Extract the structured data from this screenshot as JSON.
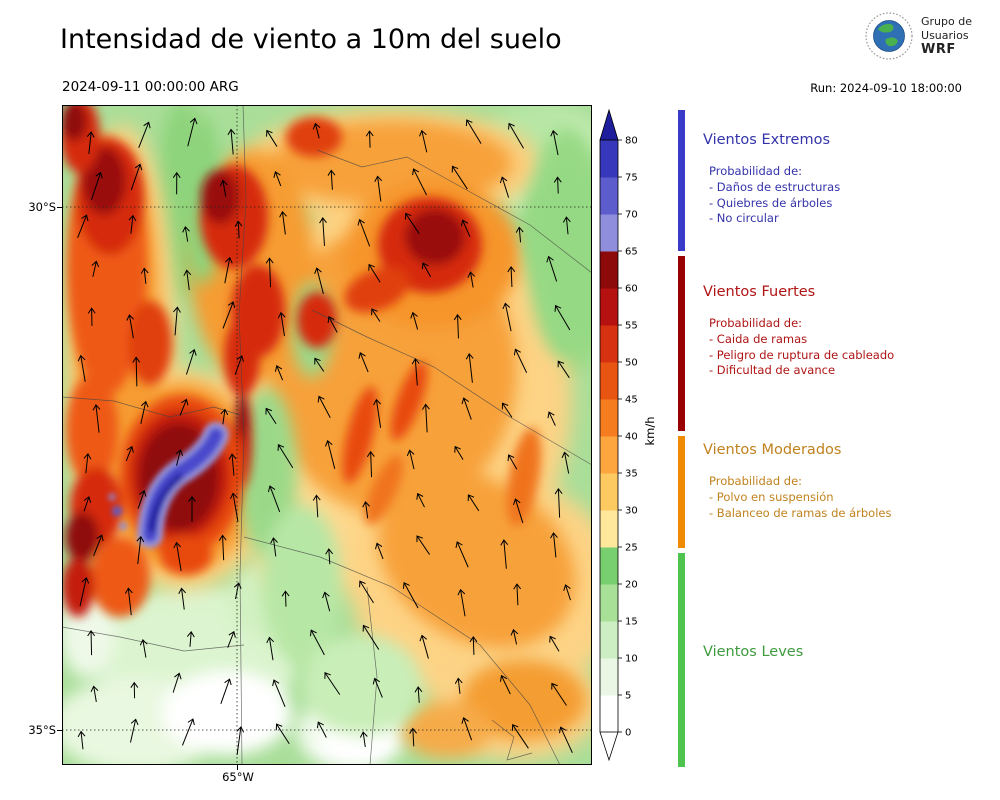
{
  "header": {
    "title": "Intensidad de viento a 10m del suelo",
    "valid": "2024-09-11 00:00:00 ARG",
    "run": "Run: 2024-09-10 18:00:00",
    "logo": {
      "line1": "Grupo de",
      "line2": "Usuarios",
      "line3": "WRF"
    }
  },
  "map": {
    "lat_label_top": "30°S",
    "lat_label_bottom": "35°S",
    "lon_label": "65°W"
  },
  "colorbar": {
    "unit": "km/h",
    "tick_min": 0,
    "tick_max": 80,
    "ticks": [
      0,
      5,
      10,
      15,
      20,
      25,
      30,
      35,
      40,
      45,
      50,
      55,
      60,
      65,
      70,
      75,
      80
    ],
    "segment_colors_bottom_to_top": [
      "#ffffff",
      "#e9f7e4",
      "#cdeec2",
      "#a8e098",
      "#77cf70",
      "#ffe79c",
      "#fdc961",
      "#fda53f",
      "#f57d20",
      "#e85512",
      "#d63211",
      "#b51111",
      "#8c0a0a",
      "#8e8edd",
      "#5c5ccc",
      "#3737bb"
    ],
    "over_color": "#1f1f9e",
    "under_color": "#ffffff"
  },
  "legend": {
    "strip_colors": {
      "extremos": "#3a3ac8",
      "fuertes": "#990000",
      "moderados": "#f08a00",
      "leves": "#4ec44e"
    },
    "sections": [
      {
        "title": "Vientos Extremos",
        "color": "#3333aa",
        "intro": "Probabilidad de:",
        "items": [
          "- Daños de estructuras",
          "- Quiebres de árboles",
          "- No circular"
        ]
      },
      {
        "title": "Vientos Fuertes",
        "color": "#b01414",
        "intro": "Probabilidad de:",
        "items": [
          "- Caida de ramas",
          "- Peligro de ruptura de cableado",
          "- Dificultad de avance"
        ]
      },
      {
        "title": "Vientos Moderados",
        "color": "#c0821e",
        "intro": "Probabilidad de:",
        "items": [
          "- Polvo en suspensión",
          "- Balanceo de ramas de árboles"
        ]
      },
      {
        "title": "Vientos Leves",
        "color": "#3f9b3f",
        "intro": "",
        "items": []
      }
    ]
  }
}
